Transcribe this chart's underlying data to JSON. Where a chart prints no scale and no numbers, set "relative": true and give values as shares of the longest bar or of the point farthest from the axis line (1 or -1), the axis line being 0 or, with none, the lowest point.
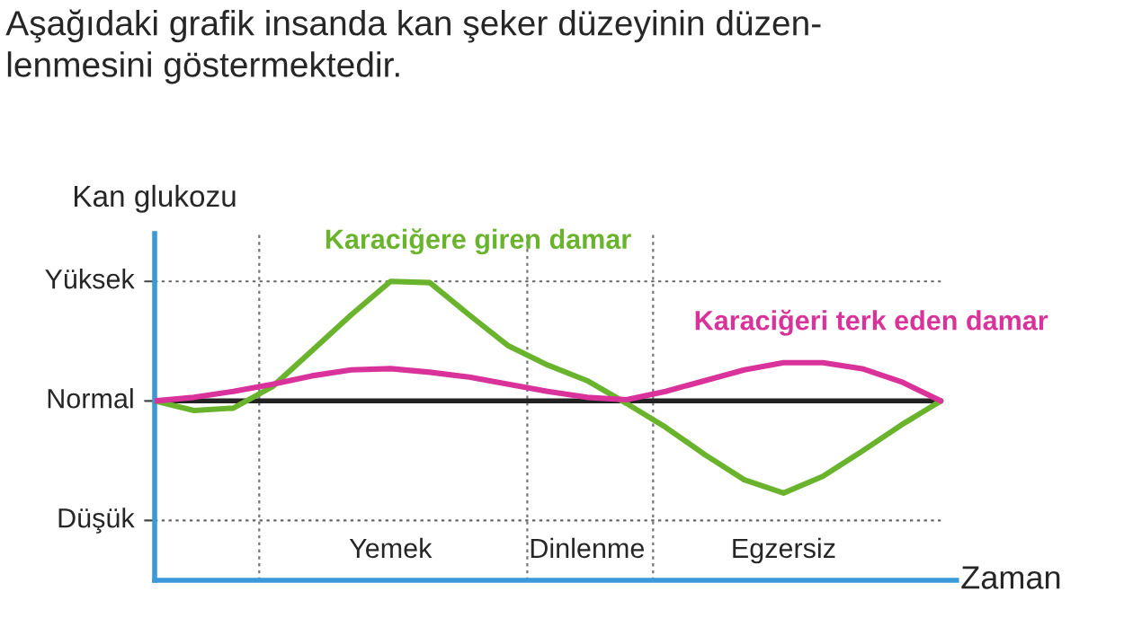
{
  "chart_data": {
    "type": "line",
    "title": "Aşağıdaki grafik insanda kan şeker düzeyinin düzen-\nlenmesini göstermektedir.",
    "ylabel": "Kan glukozu",
    "xlabel": "Zaman",
    "categories": [
      null,
      null,
      null,
      null,
      null,
      null,
      "Yemek",
      null,
      null,
      null,
      null,
      "Dinlenme",
      null,
      null,
      null,
      null,
      "Egzersiz",
      null,
      null,
      null,
      null
    ],
    "relative": true,
    "legend": false,
    "line_style": "solid",
    "marker": "none",
    "series": [
      {
        "name": "Karaciğere giren damar",
        "color": "#6ab42d",
        "values": [
          0,
          -0.08,
          -0.06,
          0.12,
          0.42,
          0.72,
          1,
          0.99,
          0.72,
          0.46,
          0.3,
          0.17,
          -0.02,
          -0.22,
          -0.45,
          -0.66,
          -0.77,
          -0.63,
          -0.42,
          -0.2,
          0
        ]
      },
      {
        "name": "Karaciğeri terk eden damar",
        "color": "#d9339b",
        "values": [
          0,
          0.03,
          0.08,
          0.14,
          0.21,
          0.26,
          0.27,
          0.24,
          0.2,
          0.14,
          0.08,
          0.03,
          0.01,
          0.08,
          0.17,
          0.26,
          0.32,
          0.32,
          0.27,
          0.16,
          0
        ]
      }
    ],
    "ref_lines": [
      {
        "axis": "y",
        "value": 1,
        "label": "Yüksek",
        "color": "#666666",
        "line_style": "dotted"
      },
      {
        "axis": "y",
        "value": 0,
        "label": "Normal",
        "color": "#222222",
        "line_style": "solid"
      },
      {
        "axis": "y",
        "value": -1,
        "label": "Düşük",
        "color": "#666666",
        "line_style": "dotted"
      }
    ]
  }
}
